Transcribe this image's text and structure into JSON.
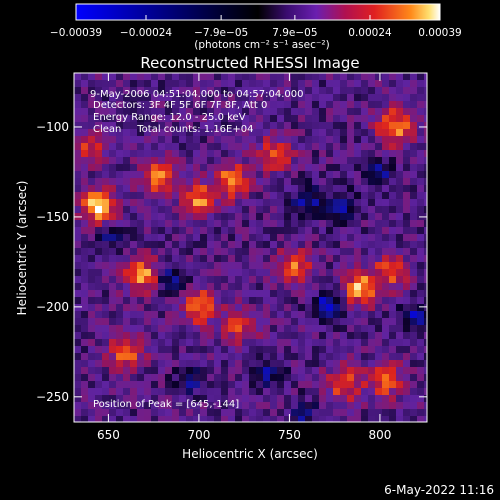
{
  "chart_data": {
    "type": "heatmap",
    "title": "Reconstructed RHESSI Image",
    "xlabel": "Heliocentric X (arcsec)",
    "ylabel": "Heliocentric Y (arcsec)",
    "xlim": [
      631,
      826
    ],
    "ylim": [
      -264,
      -70
    ],
    "x_ticks": [
      {
        "value": 650,
        "label": "650"
      },
      {
        "value": 700,
        "label": "700"
      },
      {
        "value": 750,
        "label": "750"
      },
      {
        "value": 800,
        "label": "800"
      }
    ],
    "y_ticks": [
      {
        "value": -100,
        "label": "−100"
      },
      {
        "value": -150,
        "label": "−150"
      },
      {
        "value": -200,
        "label": "−200"
      },
      {
        "value": -250,
        "label": "−250"
      }
    ],
    "colorbar": {
      "range": [
        -0.00039,
        0.00039
      ],
      "tick_values": [
        -0.00039,
        -0.00024,
        -7.9e-05,
        7.9e-05,
        0.00024,
        0.00039
      ],
      "tick_labels": [
        "−0.00039",
        "−0.00024",
        "−7.9e−05",
        "7.9e−05",
        "0.00024",
        "0.00039"
      ],
      "unit_label": "(photons cm⁻² s⁻¹ asec⁻²)",
      "colors": [
        "#0000ff",
        "#000000",
        "#6a1fb0",
        "#e02020",
        "#ff8a1a",
        "#ffffff"
      ]
    },
    "info_lines": [
      "9-May-2006 04:51:04.000 to 04:57:04.000",
      "Detectors: 3F 4F 5F 6F 7F 8F, Att 0",
      "Energy Range: 12.0 - 25.0 keV",
      "Clean     Total counts: 1.16E+04"
    ],
    "peak_label": "Position of Peak = [645,-144]",
    "peak": [
      645,
      -144
    ],
    "grid": false,
    "hotspots": [
      {
        "x": 645,
        "y": -144,
        "amp": 1.0
      },
      {
        "x": 678,
        "y": -128,
        "amp": 0.8
      },
      {
        "x": 700,
        "y": -140,
        "amp": 0.7
      },
      {
        "x": 718,
        "y": -130,
        "amp": 0.75
      },
      {
        "x": 742,
        "y": -115,
        "amp": 0.6
      },
      {
        "x": 808,
        "y": -100,
        "amp": 0.85
      },
      {
        "x": 806,
        "y": -180,
        "amp": 0.6
      },
      {
        "x": 790,
        "y": -190,
        "amp": 0.85
      },
      {
        "x": 752,
        "y": -178,
        "amp": 0.65
      },
      {
        "x": 668,
        "y": -182,
        "amp": 0.8
      },
      {
        "x": 700,
        "y": -200,
        "amp": 0.75
      },
      {
        "x": 723,
        "y": -210,
        "amp": 0.55
      },
      {
        "x": 660,
        "y": -225,
        "amp": 0.7
      },
      {
        "x": 803,
        "y": -240,
        "amp": 0.7
      },
      {
        "x": 780,
        "y": -243,
        "amp": 0.6
      },
      {
        "x": 640,
        "y": -110,
        "amp": 0.5
      }
    ],
    "coldspots": [
      {
        "x": 760,
        "y": -140,
        "amp": 0.7
      },
      {
        "x": 778,
        "y": -145,
        "amp": 0.8
      },
      {
        "x": 770,
        "y": -200,
        "amp": 0.7
      },
      {
        "x": 685,
        "y": -185,
        "amp": 0.6
      },
      {
        "x": 652,
        "y": -160,
        "amp": 0.6
      },
      {
        "x": 740,
        "y": -237,
        "amp": 0.6
      },
      {
        "x": 800,
        "y": -125,
        "amp": 0.5
      },
      {
        "x": 758,
        "y": -260,
        "amp": 0.5
      },
      {
        "x": 695,
        "y": -240,
        "amp": 0.5
      },
      {
        "x": 820,
        "y": -205,
        "amp": 0.6
      }
    ]
  },
  "footer": {
    "timestamp": "6-May-2022 11:16"
  }
}
